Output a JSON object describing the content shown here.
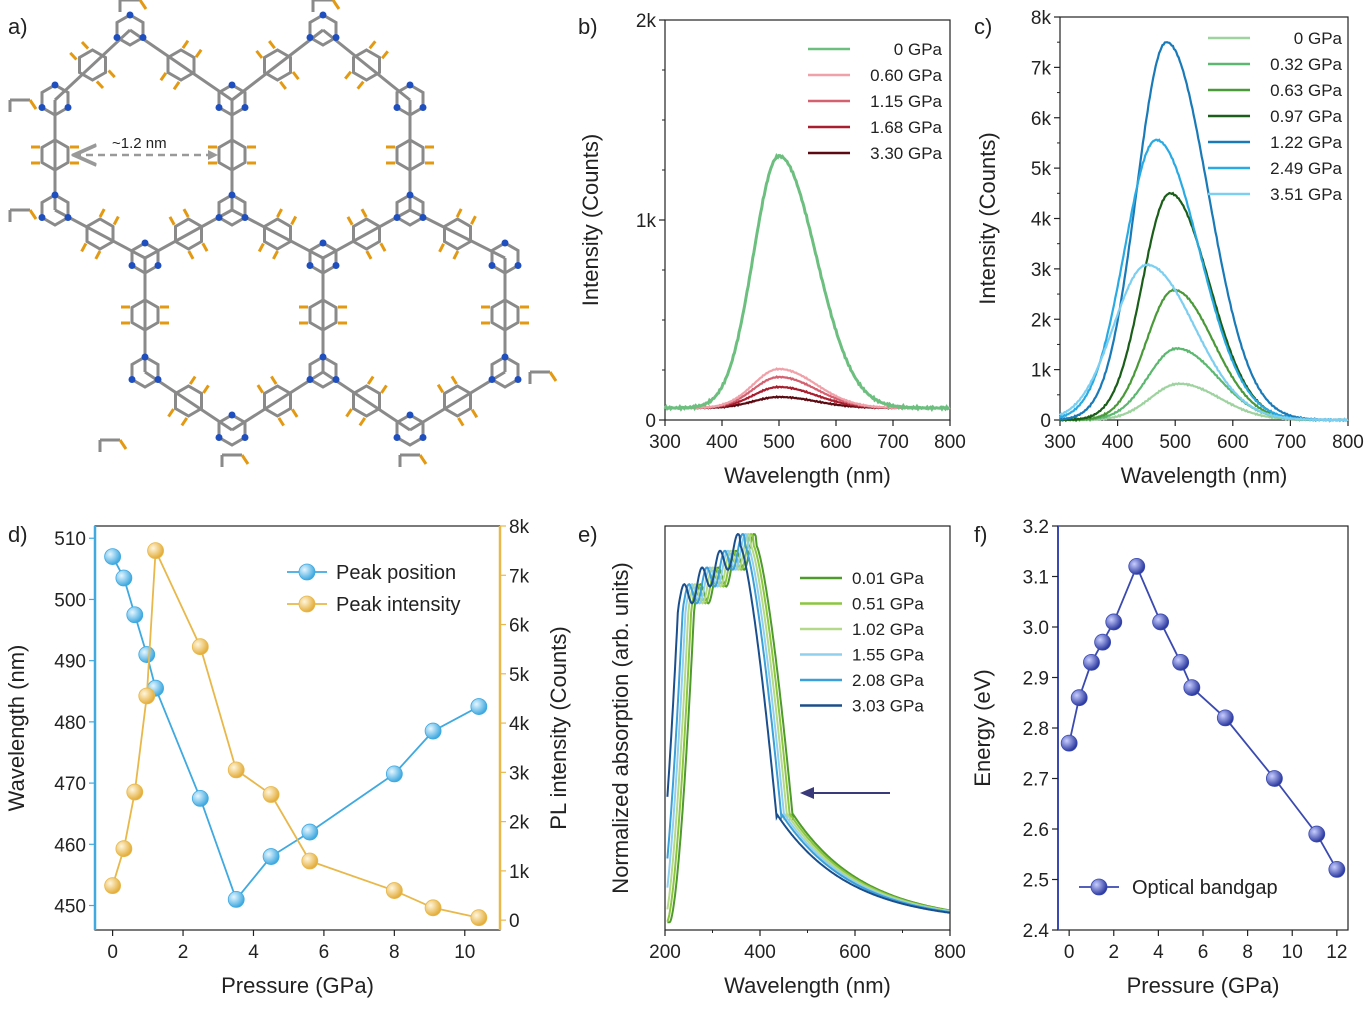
{
  "panel_labels": [
    "a)",
    "b)",
    "c)",
    "d)",
    "e)",
    "f)"
  ],
  "structure": {
    "pore_label": "~1.2 nm",
    "colors": {
      "bond": "#8a8a8a",
      "nitrogen": "#1f4fbf",
      "hydrogen": "#e39a12"
    }
  },
  "chart_data": [
    {
      "panel": "b)",
      "type": "line",
      "xlabel": "Wavelength (nm)",
      "ylabel": "Intensity (Counts)",
      "xlim": [
        300,
        800
      ],
      "ylim": [
        0,
        2000
      ],
      "xticks": [
        "300",
        "400",
        "500",
        "600",
        "700",
        "800"
      ],
      "yticks": [
        "0",
        "1k",
        "2k"
      ],
      "baseline": 60,
      "legend": "top-right",
      "series": [
        {
          "name": "0 GPa",
          "color": "#6dbf7f",
          "peak_x": 500,
          "peak_y": 1320,
          "sigma_left": 45,
          "sigma_right": 65
        },
        {
          "name": "0.60 GPa",
          "color": "#f0a0a8",
          "peak_x": 500,
          "peak_y": 255,
          "sigma_left": 45,
          "sigma_right": 65
        },
        {
          "name": "1.15 GPa",
          "color": "#d46070",
          "peak_x": 500,
          "peak_y": 215,
          "sigma_left": 45,
          "sigma_right": 65
        },
        {
          "name": "1.68 GPa",
          "color": "#a81e2e",
          "peak_x": 500,
          "peak_y": 165,
          "sigma_left": 45,
          "sigma_right": 65
        },
        {
          "name": "3.30 GPa",
          "color": "#5a0a10",
          "peak_x": 500,
          "peak_y": 115,
          "sigma_left": 45,
          "sigma_right": 65
        }
      ]
    },
    {
      "panel": "c)",
      "type": "line",
      "xlabel": "Wavelength (nm)",
      "ylabel": "Intensity (Counts)",
      "xlim": [
        300,
        800
      ],
      "ylim": [
        0,
        8000
      ],
      "xticks": [
        "300",
        "400",
        "500",
        "600",
        "700",
        "800"
      ],
      "yticks": [
        "0",
        "1k",
        "2k",
        "3k",
        "4k",
        "5k",
        "6k",
        "7k",
        "8k"
      ],
      "baseline": 0,
      "legend": "top-right",
      "series": [
        {
          "name": "0 GPa",
          "color": "#9ed3a0",
          "peak_x": 507,
          "peak_y": 720,
          "sigma_left": 50,
          "sigma_right": 70
        },
        {
          "name": "0.32 GPa",
          "color": "#5cb870",
          "peak_x": 503,
          "peak_y": 1420,
          "sigma_left": 50,
          "sigma_right": 70
        },
        {
          "name": "0.63 GPa",
          "color": "#4a9a3a",
          "peak_x": 498,
          "peak_y": 2580,
          "sigma_left": 48,
          "sigma_right": 68
        },
        {
          "name": "0.97 GPa",
          "color": "#1a5e1a",
          "peak_x": 491,
          "peak_y": 4500,
          "sigma_left": 48,
          "sigma_right": 68
        },
        {
          "name": "1.22 GPa",
          "color": "#1a7ab8",
          "peak_x": 485,
          "peak_y": 7500,
          "sigma_left": 52,
          "sigma_right": 72
        },
        {
          "name": "2.49 GPa",
          "color": "#2aaae2",
          "peak_x": 467,
          "peak_y": 5560,
          "sigma_left": 55,
          "sigma_right": 75
        },
        {
          "name": "3.51 GPa",
          "color": "#7ccff0",
          "peak_x": 451,
          "peak_y": 3080,
          "sigma_left": 58,
          "sigma_right": 82
        }
      ]
    },
    {
      "panel": "d)",
      "type": "scatter",
      "xlabel": "Pressure (GPa)",
      "ylabel": "Wavelength (nm)",
      "y2label": "PL intensity (Counts)",
      "xlim": [
        -0.5,
        11
      ],
      "ylim": [
        446,
        512
      ],
      "y2lim": [
        -200,
        8000
      ],
      "xticks": [
        "0",
        "2",
        "4",
        "6",
        "8",
        "10"
      ],
      "yticks": [
        "450",
        "460",
        "470",
        "480",
        "490",
        "500",
        "510"
      ],
      "y2ticks": [
        "0",
        "1k",
        "2k",
        "3k",
        "4k",
        "5k",
        "6k",
        "7k",
        "8k"
      ],
      "legend": "top-right",
      "series": [
        {
          "name": "Peak position",
          "axis": "left",
          "color": "#3fa9e0",
          "x": [
            0,
            0.32,
            0.63,
            0.97,
            1.22,
            2.49,
            3.51,
            4.5,
            5.6,
            8.0,
            9.1,
            10.4
          ],
          "y": [
            507,
            503.5,
            497.5,
            491,
            485.5,
            467.5,
            451,
            458,
            462,
            471.5,
            478.5,
            482.5
          ]
        },
        {
          "name": "Peak intensity",
          "axis": "right",
          "color": "#e8b84a",
          "x": [
            0,
            0.32,
            0.63,
            0.97,
            1.22,
            2.49,
            3.51,
            4.5,
            5.6,
            8.0,
            9.1,
            10.4
          ],
          "y": [
            700,
            1450,
            2600,
            4550,
            7500,
            5550,
            3050,
            2550,
            1200,
            600,
            250,
            50
          ]
        }
      ]
    },
    {
      "panel": "e)",
      "type": "line",
      "xlabel": "Wavelength (nm)",
      "ylabel": "Normalized absorption (arb. units)",
      "xlim": [
        200,
        800
      ],
      "ylim": [
        0,
        1.05
      ],
      "xticks": [
        "200",
        "400",
        "600",
        "800"
      ],
      "legend": "top-right",
      "series": [
        {
          "name": "0.01 GPa",
          "color": "#4e9a2a",
          "shift": 0
        },
        {
          "name": "0.51 GPa",
          "color": "#8cc63f",
          "shift": -6
        },
        {
          "name": "1.02 GPa",
          "color": "#b5d98a",
          "shift": -12
        },
        {
          "name": "1.55 GPa",
          "color": "#8fd0f0",
          "shift": -18
        },
        {
          "name": "2.08 GPa",
          "color": "#3b9fd8",
          "shift": -24
        },
        {
          "name": "3.03 GPa",
          "color": "#1b4e8c",
          "shift": -34
        }
      ]
    },
    {
      "panel": "f)",
      "type": "scatter",
      "xlabel": "Pressure (GPa)",
      "ylabel": "Energy (eV)",
      "xlim": [
        -0.5,
        12.5
      ],
      "ylim": [
        2.4,
        3.2
      ],
      "xticks": [
        "0",
        "2",
        "4",
        "6",
        "8",
        "10",
        "12"
      ],
      "yticks": [
        "2.4",
        "2.5",
        "2.6",
        "2.7",
        "2.8",
        "2.9",
        "3.0",
        "3.1",
        "3.2"
      ],
      "legend": "bottom-right",
      "series": [
        {
          "name": "Optical bandgap",
          "color": "#3a4ab0",
          "x": [
            0,
            0.45,
            1.0,
            1.5,
            2.0,
            3.03,
            4.1,
            5.0,
            5.5,
            7.0,
            9.2,
            11.1,
            12.0
          ],
          "y": [
            2.77,
            2.86,
            2.93,
            2.97,
            3.01,
            3.12,
            3.01,
            2.93,
            2.88,
            2.82,
            2.7,
            2.59,
            2.52
          ]
        }
      ]
    }
  ]
}
